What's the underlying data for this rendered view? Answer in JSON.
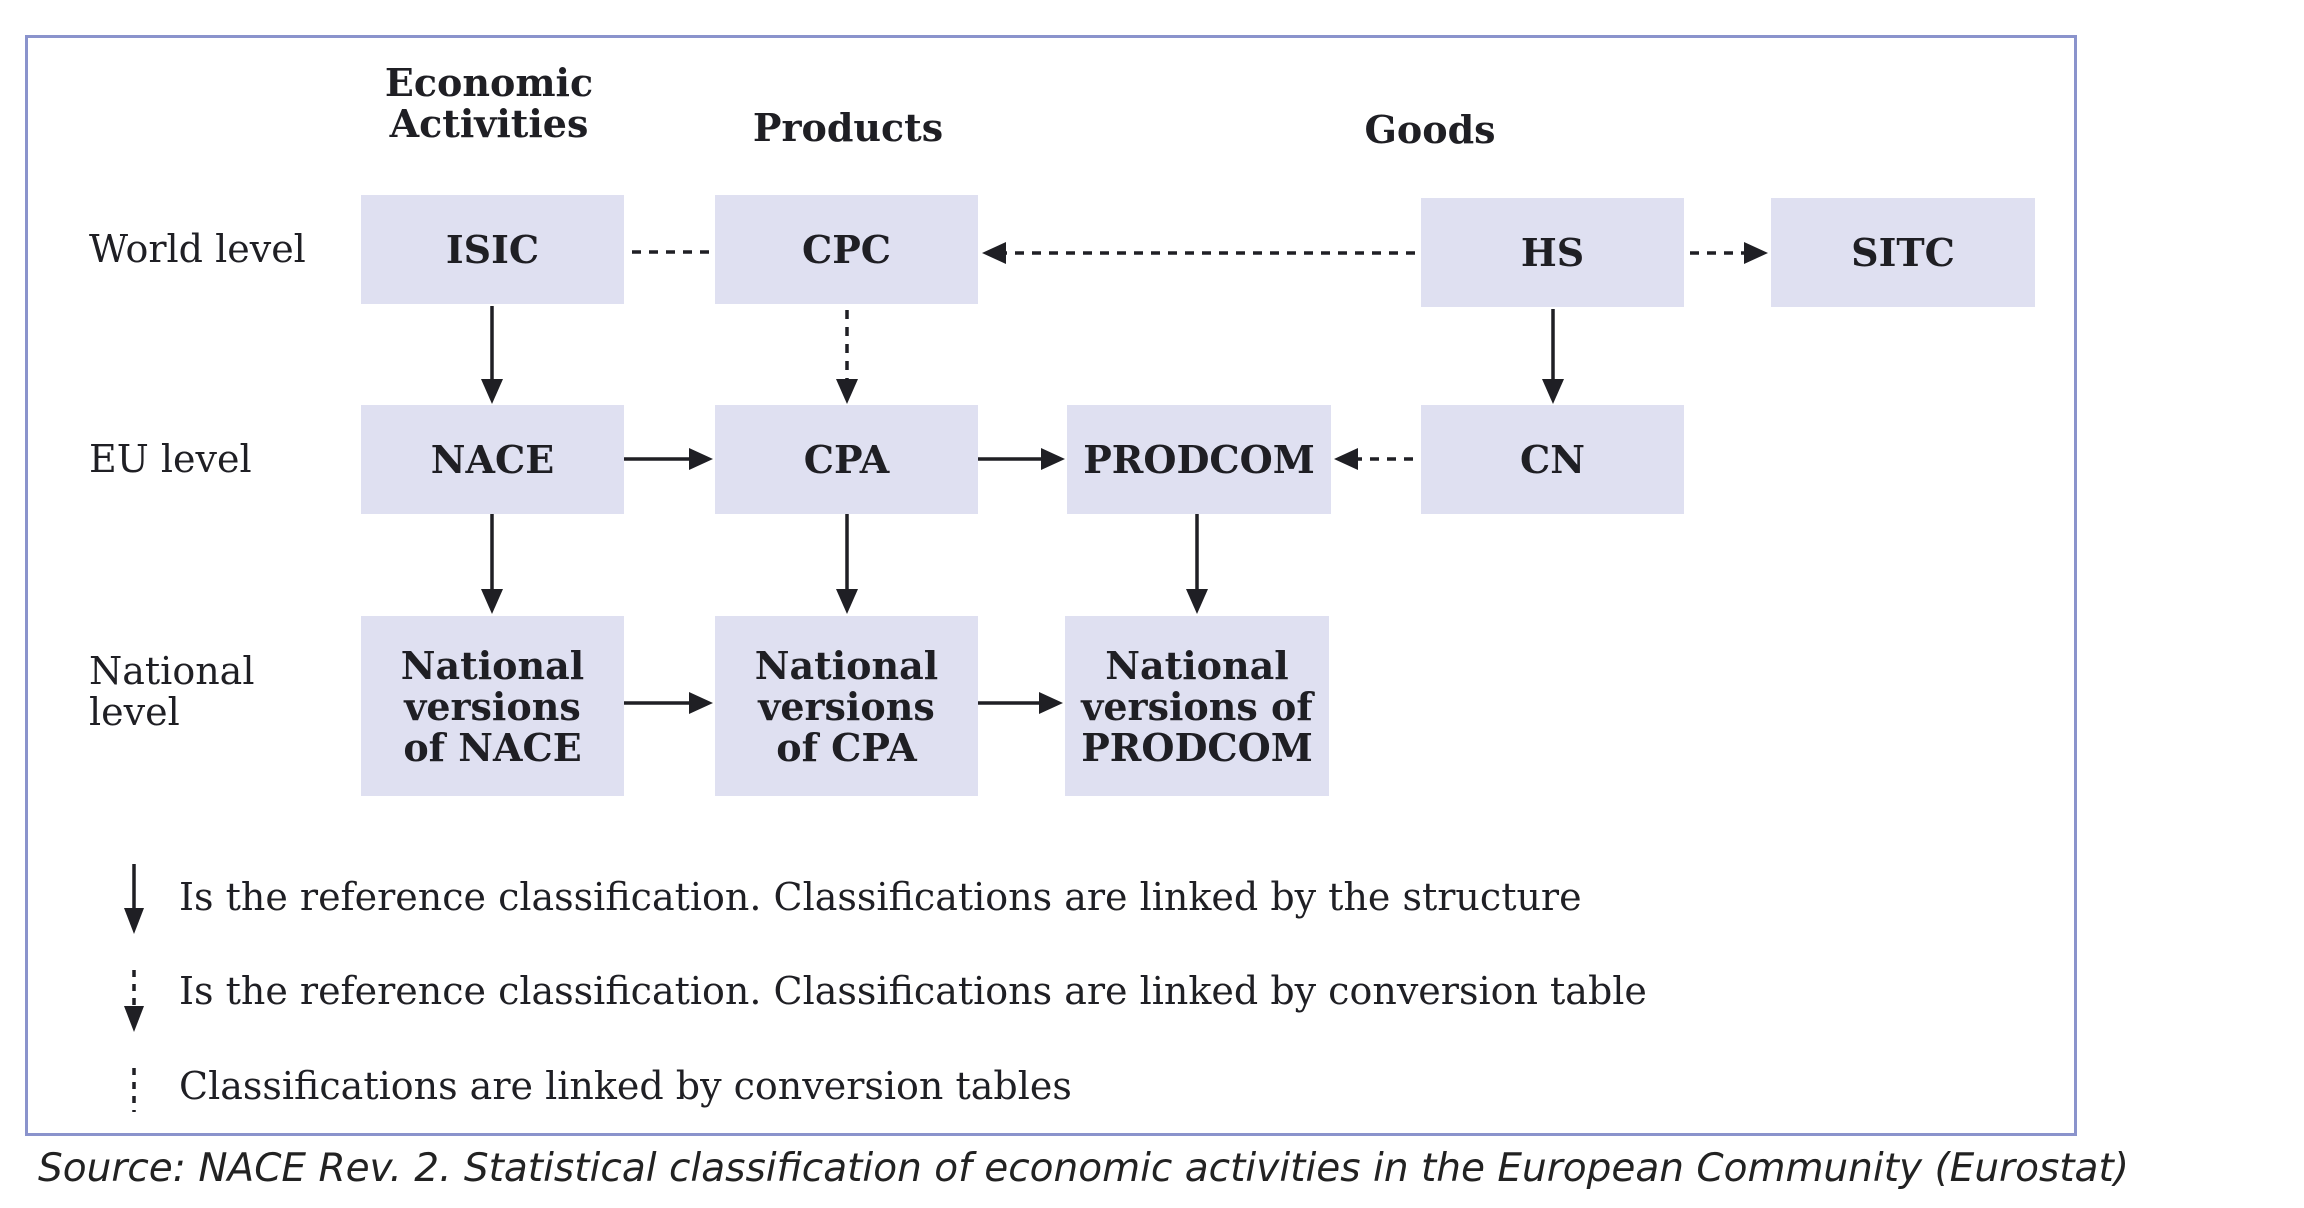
{
  "columns": {
    "economic_activities": "Economic\nActivities",
    "products": "Products",
    "goods": "Goods"
  },
  "rows": {
    "world": "World level",
    "eu": "EU level",
    "national": "National\nlevel"
  },
  "boxes": {
    "isic": "ISIC",
    "cpc": "CPC",
    "hs": "HS",
    "sitc": "SITC",
    "nace": "NACE",
    "cpa": "CPA",
    "prodcom": "PRODCOM",
    "cn": "CN",
    "nat_nace": "National\nversions\nof NACE",
    "nat_cpa": "National\nversions\nof CPA",
    "nat_prodcom": "National\nversions of\nPRODCOM"
  },
  "legend": {
    "solid_arrow": "Is the reference classification. Classifications are linked by the structure",
    "dashed_arrow": "Is the reference classification. Classifications are linked by conversion table",
    "dashed_line": "Classifications are linked by conversion tables"
  },
  "source": "Source: NACE Rev. 2. Statistical classification of economic activities in the European Community (Eurostat)",
  "colors": {
    "box_fill": "#dfe0f1",
    "frame": "#8a93cc",
    "line": "#1f1f24"
  }
}
